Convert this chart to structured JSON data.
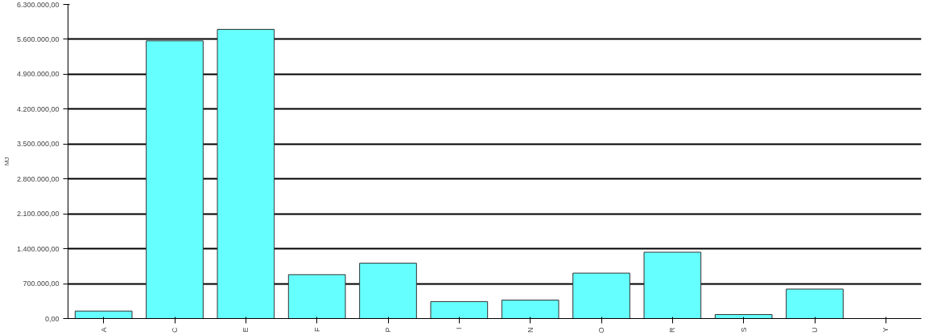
{
  "chart_data": {
    "type": "bar",
    "ylabel": "MJ",
    "categories": [
      "A",
      "C",
      "E",
      "F",
      "P",
      "I",
      "N",
      "O",
      "R",
      "S",
      "U",
      "Y"
    ],
    "values": [
      150000,
      5570000,
      5800000,
      880000,
      1110000,
      340000,
      370000,
      910000,
      1330000,
      80000,
      590000,
      null
    ],
    "color": "#66ffff",
    "ylim": [
      0,
      6300000
    ],
    "yticks": [
      {
        "value": 0,
        "label": "0,00"
      },
      {
        "value": 700000,
        "label": "700.000,00"
      },
      {
        "value": 1400000,
        "label": "1.400.000,00"
      },
      {
        "value": 2100000,
        "label": "2.100.000,00"
      },
      {
        "value": 2800000,
        "label": "2.800.000,00"
      },
      {
        "value": 3500000,
        "label": "3.500.000,00"
      },
      {
        "value": 4200000,
        "label": "4.200.000,00"
      },
      {
        "value": 4900000,
        "label": "4.900.000,00"
      },
      {
        "value": 5600000,
        "label": "5.600.000,00"
      },
      {
        "value": 6300000,
        "label": "6.300.000,00"
      }
    ],
    "grid": "y"
  }
}
